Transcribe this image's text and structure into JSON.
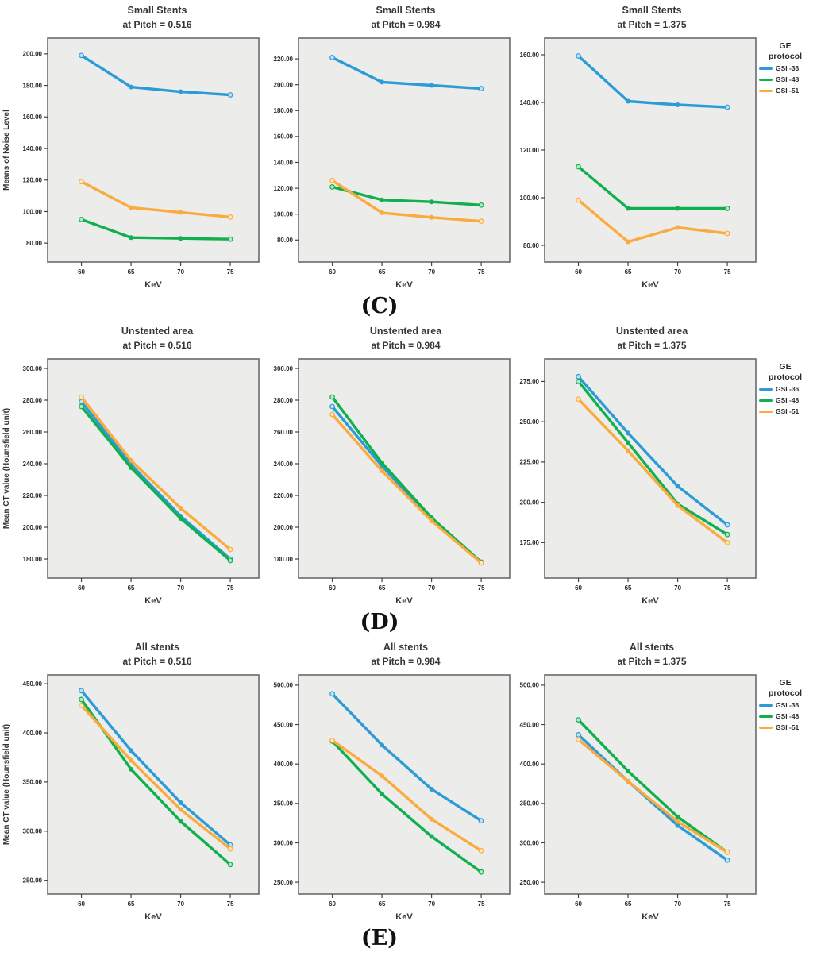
{
  "figure": {
    "background": "#ffffff"
  },
  "legend": {
    "title_line1": "GE",
    "title_line2": "protocol",
    "entries": [
      {
        "label": "GSI -36",
        "color": "#2b9cd8"
      },
      {
        "label": "GSI -48",
        "color": "#10b04f"
      },
      {
        "label": "GSI -51",
        "color": "#fbab3d"
      }
    ]
  },
  "rows": [
    {
      "label": "(C)",
      "charts": [
        0,
        1,
        2
      ]
    },
    {
      "label": "(D)",
      "charts": [
        3,
        4,
        5
      ]
    },
    {
      "label": "(E)",
      "charts": [
        6,
        7,
        8
      ]
    }
  ],
  "colors": {
    "plot_bg": "#ececea",
    "plot_border": "#6a6a6a",
    "blue": "#2b9cd8",
    "green": "#10b04f",
    "orange": "#fbab3d"
  },
  "chart_data": [
    {
      "type": "line",
      "row": "C",
      "title": "Small Stents",
      "subtitle": "at Pitch = 0.516",
      "xlabel": "KeV",
      "ylabel": "Means of Noise Level",
      "x": [
        60,
        65,
        70,
        75
      ],
      "yticks": [
        80,
        100,
        120,
        140,
        160,
        180,
        200
      ],
      "ylim": [
        68,
        210
      ],
      "series": [
        {
          "name": "GSI -36",
          "color": "#2b9cd8",
          "values": [
            199,
            179,
            176,
            174
          ]
        },
        {
          "name": "GSI -48",
          "color": "#10b04f",
          "values": [
            95,
            83.5,
            83,
            82.5
          ]
        },
        {
          "name": "GSI -51",
          "color": "#fbab3d",
          "values": [
            119,
            102.5,
            99.5,
            96.5
          ]
        }
      ]
    },
    {
      "type": "line",
      "row": "C",
      "title": "Small Stents",
      "subtitle": "at Pitch = 0.984",
      "xlabel": "KeV",
      "ylabel": "",
      "x": [
        60,
        65,
        70,
        75
      ],
      "yticks": [
        80,
        100,
        120,
        140,
        160,
        180,
        200,
        220
      ],
      "ylim": [
        63,
        236
      ],
      "series": [
        {
          "name": "GSI -36",
          "color": "#2b9cd8",
          "values": [
            221,
            202,
            199.5,
            197
          ]
        },
        {
          "name": "GSI -48",
          "color": "#10b04f",
          "values": [
            121,
            111,
            109.5,
            107
          ]
        },
        {
          "name": "GSI -51",
          "color": "#fbab3d",
          "values": [
            126,
            101,
            97.5,
            94.5
          ]
        }
      ]
    },
    {
      "type": "line",
      "row": "C",
      "title": "Small Stents",
      "subtitle": "at Pitch = 1.375",
      "xlabel": "KeV",
      "ylabel": "",
      "x": [
        60,
        65,
        70,
        75
      ],
      "yticks": [
        80,
        100,
        120,
        140,
        160
      ],
      "ylim": [
        73,
        167
      ],
      "series": [
        {
          "name": "GSI -36",
          "color": "#2b9cd8",
          "values": [
            159.5,
            140.5,
            139,
            138
          ]
        },
        {
          "name": "GSI -48",
          "color": "#10b04f",
          "values": [
            113,
            95.5,
            95.5,
            95.5
          ]
        },
        {
          "name": "GSI -51",
          "color": "#fbab3d",
          "values": [
            99,
            81.5,
            87.5,
            85
          ]
        }
      ]
    },
    {
      "type": "line",
      "row": "D",
      "title": "Unstented area",
      "subtitle": "at Pitch = 0.516",
      "xlabel": "KeV",
      "ylabel": "Mean CT value (Hounsfield unit)",
      "x": [
        60,
        65,
        70,
        75
      ],
      "yticks": [
        180,
        200,
        220,
        240,
        260,
        280,
        300
      ],
      "ylim": [
        168,
        306
      ],
      "series": [
        {
          "name": "GSI -36",
          "color": "#2b9cd8",
          "values": [
            279,
            239.5,
            207,
            180
          ]
        },
        {
          "name": "GSI -48",
          "color": "#10b04f",
          "values": [
            276,
            237.5,
            205.5,
            179
          ]
        },
        {
          "name": "GSI -51",
          "color": "#fbab3d",
          "values": [
            282,
            242,
            212,
            186
          ]
        }
      ]
    },
    {
      "type": "line",
      "row": "D",
      "title": "Unstented area",
      "subtitle": "at Pitch = 0.984",
      "xlabel": "KeV",
      "ylabel": "",
      "x": [
        60,
        65,
        70,
        75
      ],
      "yticks": [
        180,
        200,
        220,
        240,
        260,
        280,
        300
      ],
      "ylim": [
        168,
        306
      ],
      "series": [
        {
          "name": "GSI -36",
          "color": "#2b9cd8",
          "values": [
            276,
            238.5,
            205,
            178
          ]
        },
        {
          "name": "GSI -48",
          "color": "#10b04f",
          "values": [
            282,
            240.5,
            206,
            178
          ]
        },
        {
          "name": "GSI -51",
          "color": "#fbab3d",
          "values": [
            271,
            235.5,
            204,
            177.5
          ]
        }
      ]
    },
    {
      "type": "line",
      "row": "D",
      "title": "Unstented area",
      "subtitle": "at Pitch = 1.375",
      "xlabel": "KeV",
      "ylabel": "",
      "x": [
        60,
        65,
        70,
        75
      ],
      "yticks": [
        175,
        200,
        225,
        250,
        275
      ],
      "ylim": [
        153,
        289
      ],
      "series": [
        {
          "name": "GSI -36",
          "color": "#2b9cd8",
          "values": [
            278,
            243,
            210,
            186
          ]
        },
        {
          "name": "GSI -48",
          "color": "#10b04f",
          "values": [
            275,
            237,
            199,
            180
          ]
        },
        {
          "name": "GSI -51",
          "color": "#fbab3d",
          "values": [
            264,
            232,
            198,
            175
          ]
        }
      ]
    },
    {
      "type": "line",
      "row": "E",
      "title": "All stents",
      "subtitle": "at Pitch = 0.516",
      "xlabel": "KeV",
      "ylabel": "Mean CT value (Hounsfield unit)",
      "x": [
        60,
        65,
        70,
        75
      ],
      "yticks": [
        250,
        300,
        350,
        400,
        450
      ],
      "ylim": [
        236,
        459
      ],
      "series": [
        {
          "name": "GSI -36",
          "color": "#2b9cd8",
          "values": [
            443,
            382,
            329,
            286
          ]
        },
        {
          "name": "GSI -48",
          "color": "#10b04f",
          "values": [
            434,
            363,
            310,
            266
          ]
        },
        {
          "name": "GSI -51",
          "color": "#fbab3d",
          "values": [
            428,
            372,
            322,
            282
          ]
        }
      ]
    },
    {
      "type": "line",
      "row": "E",
      "title": "All stents",
      "subtitle": "at Pitch = 0.984",
      "xlabel": "KeV",
      "ylabel": "",
      "x": [
        60,
        65,
        70,
        75
      ],
      "yticks": [
        250,
        300,
        350,
        400,
        450,
        500
      ],
      "ylim": [
        235,
        513
      ],
      "series": [
        {
          "name": "GSI -36",
          "color": "#2b9cd8",
          "values": [
            489,
            424,
            368,
            328
          ]
        },
        {
          "name": "GSI -48",
          "color": "#10b04f",
          "values": [
            429,
            362,
            308,
            263
          ]
        },
        {
          "name": "GSI -51",
          "color": "#fbab3d",
          "values": [
            430,
            385,
            330,
            290
          ]
        }
      ]
    },
    {
      "type": "line",
      "row": "E",
      "title": "All stents",
      "subtitle": "at Pitch = 1.375",
      "xlabel": "KeV",
      "ylabel": "",
      "x": [
        60,
        65,
        70,
        75
      ],
      "yticks": [
        250,
        300,
        350,
        400,
        450,
        500
      ],
      "ylim": [
        235,
        513
      ],
      "series": [
        {
          "name": "GSI -36",
          "color": "#2b9cd8",
          "values": [
            437,
            378,
            322,
            278
          ]
        },
        {
          "name": "GSI -48",
          "color": "#10b04f",
          "values": [
            456,
            391,
            333,
            288
          ]
        },
        {
          "name": "GSI -51",
          "color": "#fbab3d",
          "values": [
            431,
            378,
            327,
            288
          ]
        }
      ]
    }
  ]
}
